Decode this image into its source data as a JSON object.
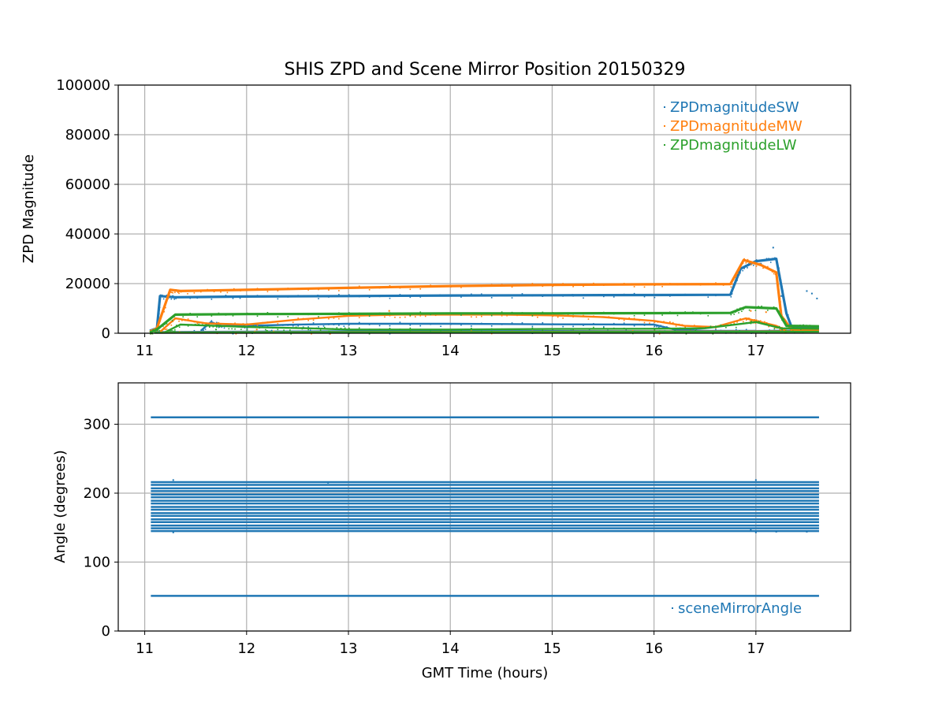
{
  "figure": {
    "title": "SHIS ZPD and Scene Mirror Position 20150329",
    "xlabel": "GMT Time (hours)"
  },
  "colors": {
    "sw": "#1f77b4",
    "mw": "#ff7f0e",
    "lw": "#2ca02c",
    "grid": "#b0b0b0",
    "axes": "#000000"
  },
  "chart_data": [
    {
      "type": "scatter",
      "ylabel": "ZPD Magnitude",
      "xlim": [
        10.74,
        17.93
      ],
      "ylim": [
        0,
        100000
      ],
      "xticks": [
        11,
        12,
        13,
        14,
        15,
        16,
        17
      ],
      "yticks": [
        0,
        20000,
        40000,
        60000,
        80000,
        100000
      ],
      "grid": true,
      "legend_position": "top-right",
      "series": [
        {
          "name": "ZPDmagnitudeSW",
          "color": "#1f77b4",
          "tracks": [
            [
              [
                11.05,
                1000
              ],
              [
                11.12,
                2000
              ],
              [
                11.15,
                15000
              ],
              [
                11.3,
                14500
              ],
              [
                12.0,
                14800
              ],
              [
                13.0,
                15000
              ],
              [
                14.0,
                15200
              ],
              [
                15.0,
                15300
              ],
              [
                16.0,
                15400
              ],
              [
                16.75,
                15500
              ],
              [
                16.85,
                26000
              ],
              [
                17.0,
                29000
              ],
              [
                17.2,
                30000
              ],
              [
                17.3,
                8000
              ],
              [
                17.35,
                2500
              ],
              [
                17.62,
                2500
              ]
            ],
            [
              [
                11.55,
                1000
              ],
              [
                11.65,
                4500
              ],
              [
                11.75,
                3000
              ],
              [
                12.0,
                3000
              ],
              [
                12.5,
                3500
              ],
              [
                13.0,
                3800
              ],
              [
                14.0,
                3800
              ],
              [
                15.0,
                3600
              ],
              [
                16.0,
                3500
              ],
              [
                16.2,
                1500
              ],
              [
                16.5,
                1000
              ],
              [
                17.0,
                1000
              ]
            ],
            [
              [
                11.1,
                500
              ],
              [
                13.0,
                800
              ],
              [
                15.0,
                900
              ],
              [
                16.8,
                800
              ],
              [
                17.62,
                1200
              ]
            ]
          ],
          "outliers": [
            [
              17.05,
              28000
            ],
            [
              17.17,
              34500
            ],
            [
              17.25,
              15000
            ],
            [
              17.5,
              17000
            ],
            [
              17.55,
              16000
            ],
            [
              17.6,
              14000
            ],
            [
              12.7,
              15200
            ],
            [
              13.9,
              15400
            ],
            [
              15.2,
              15500
            ]
          ]
        },
        {
          "name": "ZPDmagnitudeMW",
          "color": "#ff7f0e",
          "tracks": [
            [
              [
                11.05,
                500
              ],
              [
                11.12,
                2000
              ],
              [
                11.25,
                17500
              ],
              [
                11.35,
                17000
              ],
              [
                12.0,
                17500
              ],
              [
                13.0,
                18300
              ],
              [
                14.0,
                19000
              ],
              [
                15.0,
                19500
              ],
              [
                16.0,
                19700
              ],
              [
                16.75,
                19800
              ],
              [
                16.88,
                29500
              ],
              [
                17.05,
                27500
              ],
              [
                17.2,
                24500
              ],
              [
                17.25,
                7000
              ],
              [
                17.35,
                1500
              ],
              [
                17.62,
                1500
              ]
            ],
            [
              [
                11.15,
                500
              ],
              [
                11.3,
                6000
              ],
              [
                11.6,
                4000
              ],
              [
                12.0,
                3500
              ],
              [
                12.5,
                5500
              ],
              [
                13.0,
                7000
              ],
              [
                13.5,
                7500
              ],
              [
                14.0,
                7500
              ],
              [
                14.5,
                7500
              ],
              [
                15.0,
                7200
              ],
              [
                15.5,
                6500
              ],
              [
                16.0,
                5000
              ],
              [
                16.3,
                3000
              ],
              [
                16.6,
                2500
              ],
              [
                16.9,
                6000
              ],
              [
                17.0,
                5000
              ],
              [
                17.2,
                3000
              ],
              [
                17.3,
                1000
              ]
            ],
            [
              [
                11.15,
                300
              ],
              [
                13.0,
                500
              ],
              [
                15.0,
                600
              ],
              [
                17.62,
                800
              ]
            ]
          ],
          "outliers": [
            [
              13.4,
              9000
            ],
            [
              11.6,
              4000
            ],
            [
              12.1,
              1500
            ],
            [
              16.95,
              9000
            ],
            [
              17.1,
              8500
            ]
          ]
        },
        {
          "name": "ZPDmagnitudeLW",
          "color": "#2ca02c",
          "tracks": [
            [
              [
                11.05,
                300
              ],
              [
                11.12,
                1500
              ],
              [
                11.3,
                7500
              ],
              [
                12.0,
                7700
              ],
              [
                13.0,
                7800
              ],
              [
                14.0,
                8000
              ],
              [
                15.0,
                8000
              ],
              [
                16.0,
                8100
              ],
              [
                16.75,
                8200
              ],
              [
                16.9,
                10500
              ],
              [
                17.2,
                10000
              ],
              [
                17.3,
                3000
              ],
              [
                17.62,
                2800
              ]
            ],
            [
              [
                11.2,
                400
              ],
              [
                11.35,
                3500
              ],
              [
                11.7,
                3000
              ],
              [
                12.0,
                2500
              ],
              [
                12.6,
                2000
              ],
              [
                13.0,
                1500
              ],
              [
                14.0,
                1500
              ],
              [
                15.0,
                1700
              ],
              [
                16.0,
                1800
              ],
              [
                16.5,
                2000
              ],
              [
                17.0,
                4500
              ],
              [
                17.25,
                2000
              ],
              [
                17.62,
                1800
              ]
            ],
            [
              [
                11.1,
                200
              ],
              [
                13.0,
                400
              ],
              [
                15.0,
                500
              ],
              [
                17.62,
                600
              ]
            ]
          ],
          "outliers": [
            [
              11.7,
              1500
            ],
            [
              12.2,
              1000
            ],
            [
              16.95,
              4000
            ]
          ]
        }
      ]
    },
    {
      "type": "scatter",
      "ylabel": "Angle (degrees)",
      "xlabel": "GMT Time (hours)",
      "xlim": [
        10.74,
        17.93
      ],
      "ylim": [
        0,
        360
      ],
      "xticks": [
        11,
        12,
        13,
        14,
        15,
        16,
        17
      ],
      "yticks": [
        0,
        100,
        200,
        300
      ],
      "grid": true,
      "legend_position": "lower-right",
      "series": [
        {
          "name": "sceneMirrorAngle",
          "color": "#1f77b4",
          "x_range": [
            11.06,
            17.62
          ],
          "levels": [
            310,
            51,
            216,
            212,
            207,
            203,
            198,
            194,
            189,
            185,
            180,
            176,
            171,
            167,
            162,
            158,
            153,
            149,
            145
          ],
          "outliers": [
            [
              11.28,
              219
            ],
            [
              17.0,
              219
            ],
            [
              11.28,
              143
            ],
            [
              17.0,
              143
            ],
            [
              12.8,
              215
            ],
            [
              16.95,
              147
            ],
            [
              17.2,
              144
            ],
            [
              17.5,
              144
            ]
          ]
        }
      ]
    }
  ]
}
